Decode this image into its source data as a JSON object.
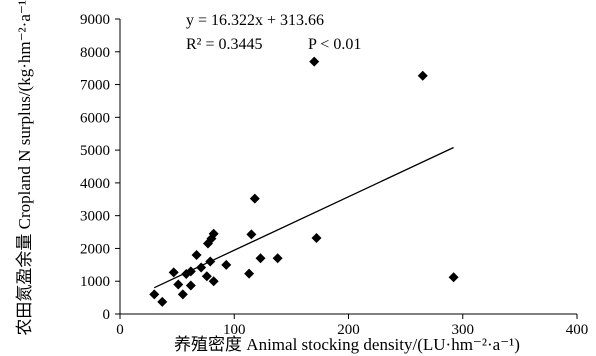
{
  "chart_data": {
    "type": "scatter",
    "xlabel": "养殖密度 Animal stocking density/(LU·hm⁻²·a⁻¹)",
    "ylabel": "农田氮盈余量 Cropland N surplus/(kg·hm⁻²·a⁻¹)",
    "xlim": [
      0,
      400
    ],
    "ylim": [
      0,
      9000
    ],
    "xticks": [
      0,
      100,
      200,
      300,
      400
    ],
    "yticks": [
      0,
      1000,
      2000,
      3000,
      4000,
      5000,
      6000,
      7000,
      8000,
      9000
    ],
    "grid": false,
    "marker": "diamond",
    "marker_color": "#000000",
    "points": [
      {
        "x": 30,
        "y": 600
      },
      {
        "x": 37,
        "y": 370
      },
      {
        "x": 47,
        "y": 1270
      },
      {
        "x": 51,
        "y": 900
      },
      {
        "x": 55,
        "y": 600
      },
      {
        "x": 58,
        "y": 1220
      },
      {
        "x": 62,
        "y": 870
      },
      {
        "x": 62,
        "y": 1300
      },
      {
        "x": 67,
        "y": 1800
      },
      {
        "x": 71,
        "y": 1420
      },
      {
        "x": 76,
        "y": 1150
      },
      {
        "x": 77,
        "y": 2150
      },
      {
        "x": 79,
        "y": 1600
      },
      {
        "x": 80,
        "y": 2300
      },
      {
        "x": 82,
        "y": 2450
      },
      {
        "x": 82,
        "y": 1000
      },
      {
        "x": 93,
        "y": 1500
      },
      {
        "x": 113,
        "y": 1230
      },
      {
        "x": 115,
        "y": 2430
      },
      {
        "x": 118,
        "y": 3520
      },
      {
        "x": 123,
        "y": 1700
      },
      {
        "x": 138,
        "y": 1700
      },
      {
        "x": 170,
        "y": 7700
      },
      {
        "x": 172,
        "y": 2320
      },
      {
        "x": 265,
        "y": 7270
      },
      {
        "x": 292,
        "y": 1120
      }
    ],
    "trendline": {
      "slope": 16.322,
      "intercept": 313.66,
      "x_range": [
        30,
        292
      ]
    },
    "annotations": {
      "equation": "y = 16.322x + 313.66",
      "r2": "R² = 0.3445",
      "p": "P < 0.01"
    }
  }
}
